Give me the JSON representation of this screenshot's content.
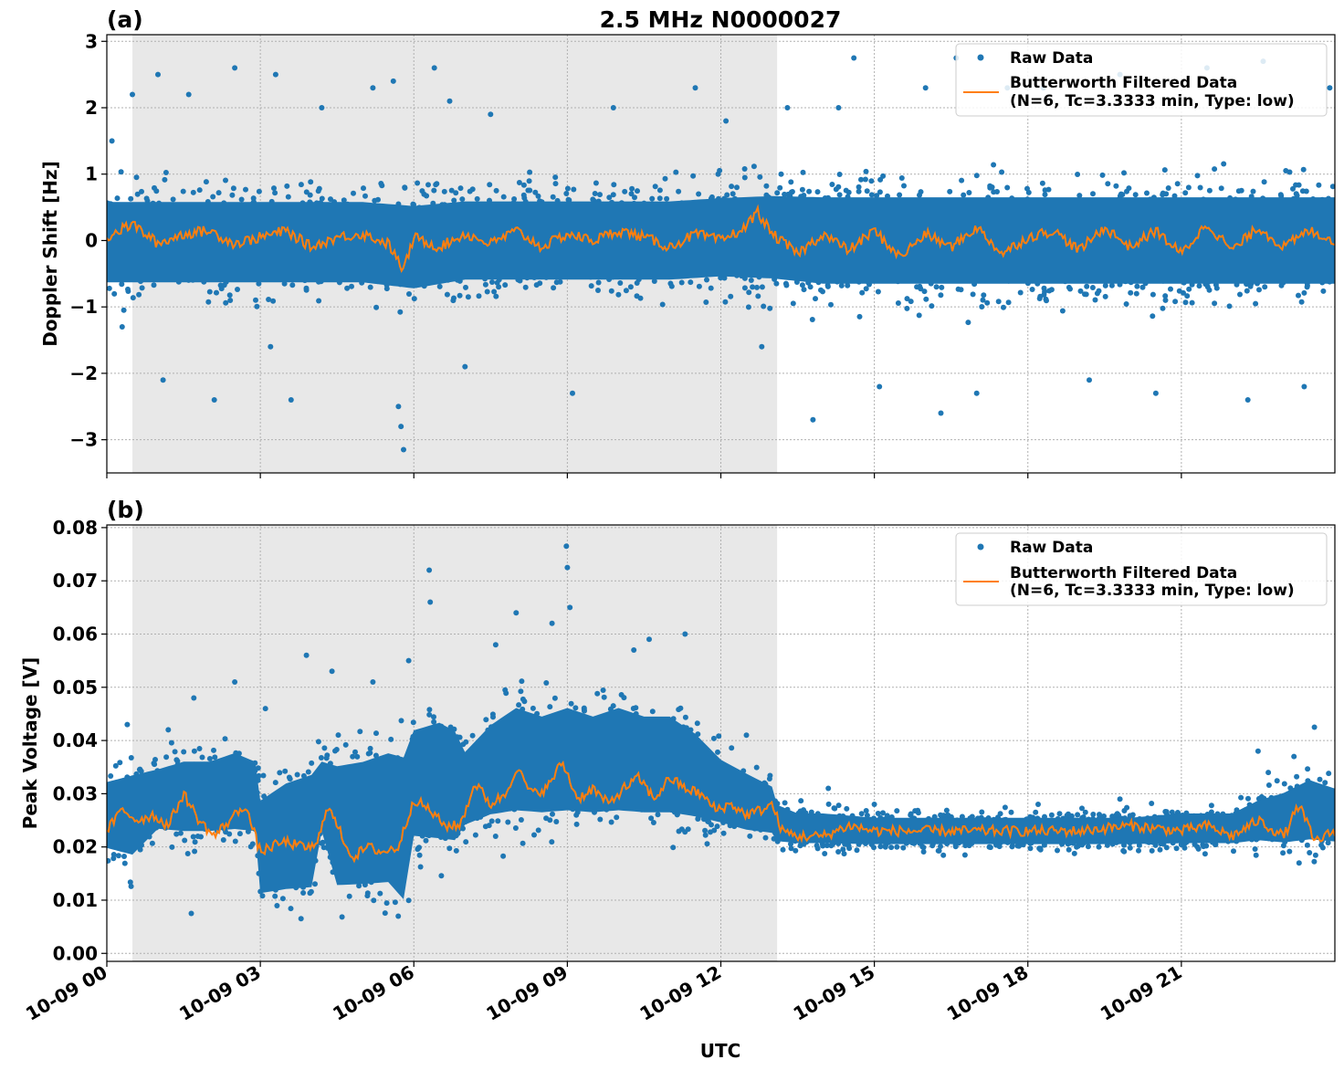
{
  "figure": {
    "title": "2.5 MHz N0000027",
    "xlabel": "UTC",
    "x_ticks": [
      "10-09 00",
      "10-09 03",
      "10-09 06",
      "10-09 09",
      "10-09 12",
      "10-09 15",
      "10-09 18",
      "10-09 21"
    ]
  },
  "colors": {
    "raw": "#1f77b4",
    "filtered": "#ff7f0e",
    "night_shade": "#e8e8e8"
  },
  "chart_data": [
    {
      "type": "scatter",
      "panel_label": "(a)",
      "title": "2.5 MHz N0000027",
      "xlabel": "",
      "ylabel": "Doppler Shift [Hz]",
      "x_unit": "hours UTC",
      "xlim": [
        0,
        24
      ],
      "ylim": [
        -3.5,
        3.1
      ],
      "y_ticks": [
        -3,
        -2,
        -1,
        0,
        1,
        2,
        3
      ],
      "y_tick_labels": [
        "−3",
        "−2",
        "−1",
        "0",
        "1",
        "2",
        "3"
      ],
      "shaded_interval_hours": [
        0.5,
        13.1
      ],
      "grid": true,
      "legend_placement": "upper right",
      "legend": [
        "Raw Data",
        "Butterworth Filtered Data",
        "(N=6, Tc=3.3333 min, Type: low)"
      ],
      "series": [
        {
          "name": "Raw Data",
          "style": "points",
          "x": [
            0,
            1,
            2,
            3,
            4,
            5,
            6,
            7,
            8,
            9,
            10,
            11,
            12,
            13,
            14,
            15,
            16,
            17,
            18,
            19,
            20,
            21,
            22,
            23,
            24
          ],
          "dense_low": [
            -1.0,
            -1.0,
            -1.0,
            -1.0,
            -1.0,
            -1.0,
            -1.1,
            -0.95,
            -0.95,
            -0.95,
            -0.95,
            -0.95,
            -0.9,
            -0.95,
            -1.05,
            -1.05,
            -1.05,
            -1.05,
            -1.05,
            -1.05,
            -1.05,
            -1.05,
            -1.05,
            -1.05,
            -1.05
          ],
          "dense_high": [
            0.95,
            0.95,
            0.95,
            0.95,
            0.95,
            0.95,
            0.9,
            0.95,
            0.95,
            0.95,
            0.95,
            0.95,
            1.0,
            1.05,
            1.05,
            1.05,
            1.05,
            1.05,
            1.05,
            1.05,
            1.05,
            1.05,
            1.05,
            1.05,
            1.05
          ],
          "outliers": [
            [
              0.1,
              1.5
            ],
            [
              0.3,
              -1.3
            ],
            [
              0.5,
              2.2
            ],
            [
              1.0,
              2.5
            ],
            [
              1.1,
              -2.1
            ],
            [
              1.6,
              2.2
            ],
            [
              2.1,
              -2.4
            ],
            [
              2.5,
              2.6
            ],
            [
              3.3,
              2.5
            ],
            [
              3.2,
              -1.6
            ],
            [
              3.6,
              -2.4
            ],
            [
              4.2,
              2.0
            ],
            [
              5.2,
              2.3
            ],
            [
              5.6,
              2.4
            ],
            [
              5.7,
              -2.5
            ],
            [
              5.75,
              -2.8
            ],
            [
              5.8,
              -3.15
            ],
            [
              6.4,
              2.6
            ],
            [
              6.7,
              2.1
            ],
            [
              7.0,
              -1.9
            ],
            [
              7.5,
              1.9
            ],
            [
              9.1,
              -2.3
            ],
            [
              9.9,
              2.0
            ],
            [
              11.5,
              2.3
            ],
            [
              12.1,
              1.8
            ],
            [
              12.8,
              -1.6
            ],
            [
              13.3,
              2.0
            ],
            [
              13.8,
              -2.7
            ],
            [
              14.3,
              2.0
            ],
            [
              14.6,
              2.75
            ],
            [
              15.1,
              -2.2
            ],
            [
              16.0,
              2.3
            ],
            [
              16.3,
              -2.6
            ],
            [
              16.6,
              2.75
            ],
            [
              17.0,
              -2.3
            ],
            [
              17.6,
              2.3
            ],
            [
              18.3,
              2.3
            ],
            [
              19.2,
              -2.1
            ],
            [
              19.8,
              2.5
            ],
            [
              20.5,
              -2.3
            ],
            [
              21.5,
              2.6
            ],
            [
              22.3,
              -2.4
            ],
            [
              22.6,
              2.7
            ],
            [
              23.4,
              -2.2
            ],
            [
              23.9,
              2.3
            ]
          ]
        },
        {
          "name": "Butterworth Filtered Data",
          "style": "line",
          "x": [
            0,
            0.5,
            1,
            1.5,
            2,
            2.5,
            3,
            3.5,
            4,
            4.5,
            5,
            5.5,
            5.8,
            6,
            6.5,
            7,
            7.5,
            8,
            8.5,
            9,
            9.5,
            10,
            10.5,
            11,
            11.5,
            12,
            12.5,
            12.7,
            13,
            13.5,
            14,
            14.5,
            15,
            15.5,
            16,
            16.5,
            17,
            17.5,
            18,
            18.5,
            19,
            19.5,
            20,
            20.5,
            21,
            21.5,
            22,
            22.5,
            23,
            23.5,
            24
          ],
          "y": [
            0.05,
            0.25,
            -0.05,
            0.1,
            0.15,
            -0.05,
            0.05,
            0.15,
            -0.1,
            0.05,
            0.1,
            -0.05,
            -0.45,
            0.05,
            -0.1,
            0.1,
            -0.05,
            0.15,
            -0.1,
            0.1,
            0.0,
            0.15,
            0.05,
            -0.1,
            0.1,
            0.0,
            0.2,
            0.45,
            0.1,
            -0.2,
            0.1,
            -0.15,
            0.15,
            -0.25,
            0.1,
            -0.1,
            0.2,
            -0.2,
            0.05,
            0.15,
            -0.15,
            0.2,
            -0.1,
            0.15,
            -0.2,
            0.25,
            -0.15,
            0.2,
            -0.1,
            0.15,
            0.0
          ]
        }
      ]
    },
    {
      "type": "scatter",
      "panel_label": "(b)",
      "title": "",
      "xlabel": "UTC",
      "ylabel": "Peak Voltage [V]",
      "x_unit": "hours UTC",
      "xlim": [
        0,
        24
      ],
      "ylim": [
        -0.0015,
        0.0805
      ],
      "y_ticks": [
        0.0,
        0.01,
        0.02,
        0.03,
        0.04,
        0.05,
        0.06,
        0.07,
        0.08
      ],
      "y_tick_labels": [
        "0.00",
        "0.01",
        "0.02",
        "0.03",
        "0.04",
        "0.05",
        "0.06",
        "0.07",
        "0.08"
      ],
      "shaded_interval_hours": [
        0.5,
        13.1
      ],
      "grid": true,
      "legend_placement": "upper right",
      "legend": [
        "Raw Data",
        "Butterworth Filtered Data",
        "(N=6, Tc=3.3333 min, Type: low)"
      ],
      "series": [
        {
          "name": "Raw Data",
          "style": "points",
          "x": [
            0,
            0.5,
            1,
            1.5,
            2,
            2.5,
            2.9,
            3.0,
            3.5,
            4.0,
            4.2,
            4.5,
            5.0,
            5.5,
            5.8,
            6.0,
            6.5,
            6.8,
            7.0,
            7.5,
            8,
            8.5,
            9,
            9.5,
            10,
            10.5,
            11,
            11.5,
            12,
            12.5,
            13,
            13.1,
            13.5,
            14,
            15,
            16,
            17,
            18,
            19,
            20,
            21,
            22,
            22.5,
            23,
            23.5,
            24
          ],
          "dense_low": [
            0.016,
            0.014,
            0.02,
            0.019,
            0.019,
            0.019,
            0.019,
            0.006,
            0.006,
            0.006,
            0.019,
            0.006,
            0.006,
            0.006,
            0.002,
            0.016,
            0.015,
            0.015,
            0.02,
            0.021,
            0.021,
            0.021,
            0.021,
            0.021,
            0.021,
            0.021,
            0.021,
            0.021,
            0.021,
            0.02,
            0.02,
            0.019,
            0.019,
            0.019,
            0.019,
            0.019,
            0.019,
            0.019,
            0.019,
            0.019,
            0.019,
            0.019,
            0.019,
            0.018,
            0.018,
            0.018
          ],
          "dense_high": [
            0.036,
            0.038,
            0.038,
            0.04,
            0.04,
            0.042,
            0.04,
            0.034,
            0.038,
            0.04,
            0.04,
            0.042,
            0.043,
            0.045,
            0.045,
            0.048,
            0.05,
            0.048,
            0.042,
            0.048,
            0.052,
            0.05,
            0.052,
            0.05,
            0.052,
            0.05,
            0.05,
            0.046,
            0.04,
            0.037,
            0.034,
            0.03,
            0.028,
            0.028,
            0.027,
            0.027,
            0.027,
            0.027,
            0.027,
            0.027,
            0.028,
            0.028,
            0.031,
            0.033,
            0.036,
            0.034
          ],
          "outliers": [
            [
              0.4,
              0.043
            ],
            [
              1.2,
              0.042
            ],
            [
              1.7,
              0.048
            ],
            [
              1.65,
              0.0075
            ],
            [
              2.5,
              0.051
            ],
            [
              3.1,
              0.046
            ],
            [
              3.9,
              0.056
            ],
            [
              4.4,
              0.053
            ],
            [
              5.2,
              0.051
            ],
            [
              5.9,
              0.055
            ],
            [
              6.3,
              0.072
            ],
            [
              6.32,
              0.066
            ],
            [
              7.6,
              0.058
            ],
            [
              8.0,
              0.064
            ],
            [
              8.7,
              0.062
            ],
            [
              8.98,
              0.0765
            ],
            [
              9.0,
              0.0725
            ],
            [
              9.05,
              0.065
            ],
            [
              10.3,
              0.057
            ],
            [
              10.6,
              0.059
            ],
            [
              11.3,
              0.06
            ],
            [
              12.5,
              0.041
            ],
            [
              14.1,
              0.031
            ],
            [
              15.0,
              0.028
            ],
            [
              18.2,
              0.028
            ],
            [
              19.8,
              0.029
            ],
            [
              22.5,
              0.038
            ],
            [
              22.7,
              0.034
            ],
            [
              23.2,
              0.037
            ],
            [
              23.6,
              0.0425
            ],
            [
              23.3,
              0.017
            ]
          ]
        },
        {
          "name": "Butterworth Filtered Data",
          "style": "line",
          "x": [
            0,
            0.3,
            0.6,
            0.9,
            1.2,
            1.5,
            1.8,
            2.1,
            2.4,
            2.7,
            3.0,
            3.2,
            3.5,
            3.8,
            4.1,
            4.3,
            4.5,
            4.8,
            5.1,
            5.4,
            5.7,
            6.0,
            6.3,
            6.6,
            6.9,
            7.2,
            7.5,
            7.8,
            8.0,
            8.3,
            8.6,
            8.9,
            9.2,
            9.5,
            9.8,
            10.1,
            10.4,
            10.7,
            11.0,
            11.3,
            11.6,
            11.9,
            12.2,
            12.5,
            12.8,
            13.0,
            13.2,
            13.5,
            14.0,
            14.5,
            15.0,
            16.0,
            17.0,
            18.0,
            19.0,
            20.0,
            21.0,
            21.5,
            22.0,
            22.5,
            23.0,
            23.3,
            23.6,
            24.0
          ],
          "y": [
            0.023,
            0.027,
            0.025,
            0.026,
            0.024,
            0.03,
            0.025,
            0.022,
            0.025,
            0.028,
            0.019,
            0.02,
            0.021,
            0.02,
            0.02,
            0.028,
            0.024,
            0.018,
            0.02,
            0.019,
            0.02,
            0.029,
            0.027,
            0.024,
            0.024,
            0.032,
            0.028,
            0.03,
            0.035,
            0.03,
            0.031,
            0.036,
            0.029,
            0.031,
            0.028,
            0.031,
            0.033,
            0.029,
            0.033,
            0.031,
            0.03,
            0.027,
            0.028,
            0.026,
            0.027,
            0.028,
            0.023,
            0.022,
            0.022,
            0.024,
            0.023,
            0.023,
            0.023,
            0.023,
            0.023,
            0.024,
            0.023,
            0.024,
            0.022,
            0.025,
            0.022,
            0.028,
            0.021,
            0.023
          ]
        }
      ]
    }
  ]
}
